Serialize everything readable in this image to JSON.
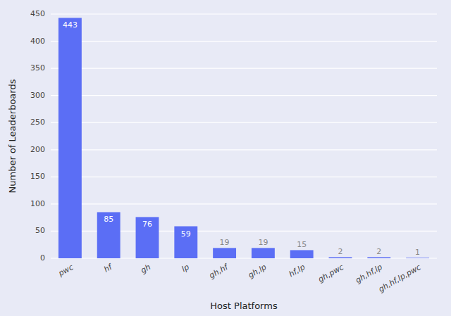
{
  "chart_data": {
    "type": "bar",
    "categories": [
      "pwc",
      "hf",
      "gh",
      "lp",
      "gh,hf",
      "gh,lp",
      "hf,lp",
      "gh,pwc",
      "gh,hf,lp",
      "gh,hf,lp,pwc"
    ],
    "values": [
      443,
      85,
      76,
      59,
      19,
      19,
      15,
      2,
      2,
      1
    ],
    "color": "#5b6ef5",
    "xlabel": "Host Platforms",
    "ylabel": "Number of Leaderboards",
    "ylim": [
      0,
      450
    ],
    "yticks": [
      0,
      50,
      100,
      150,
      200,
      250,
      300,
      350,
      400,
      450
    ],
    "grid": true,
    "data_labels": true
  }
}
